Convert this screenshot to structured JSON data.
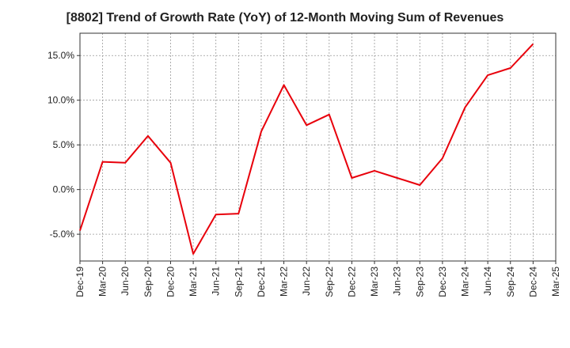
{
  "chart_data": {
    "type": "line",
    "title": "[8802]  Trend of Growth Rate (YoY) of 12-Month Moving Sum of Revenues",
    "xlabel": "",
    "ylabel": "",
    "x": [
      "Dec-19",
      "Mar-20",
      "Jun-20",
      "Sep-20",
      "Dec-20",
      "Mar-21",
      "Jun-21",
      "Sep-21",
      "Dec-21",
      "Mar-22",
      "Jun-22",
      "Sep-22",
      "Dec-22",
      "Mar-23",
      "Jun-23",
      "Sep-23",
      "Dec-23",
      "Mar-24",
      "Jun-24",
      "Sep-24",
      "Dec-24",
      "Mar-25"
    ],
    "series": [
      {
        "name": "",
        "color": "#e8000b",
        "values": [
          -4.6,
          3.1,
          3.0,
          6.0,
          3.0,
          -7.2,
          -2.8,
          -2.7,
          6.5,
          11.7,
          7.2,
          8.4,
          1.3,
          2.1,
          1.3,
          0.5,
          3.5,
          9.2,
          12.8,
          13.6,
          16.3,
          null
        ]
      }
    ],
    "yticks": [
      -5,
      0,
      5,
      10,
      15
    ],
    "ytick_labels": [
      "-5.0%",
      "0.0%",
      "5.0%",
      "10.0%",
      "15.0%"
    ],
    "ylim": [
      -8,
      17.5
    ],
    "grid": true,
    "legend": "none"
  }
}
